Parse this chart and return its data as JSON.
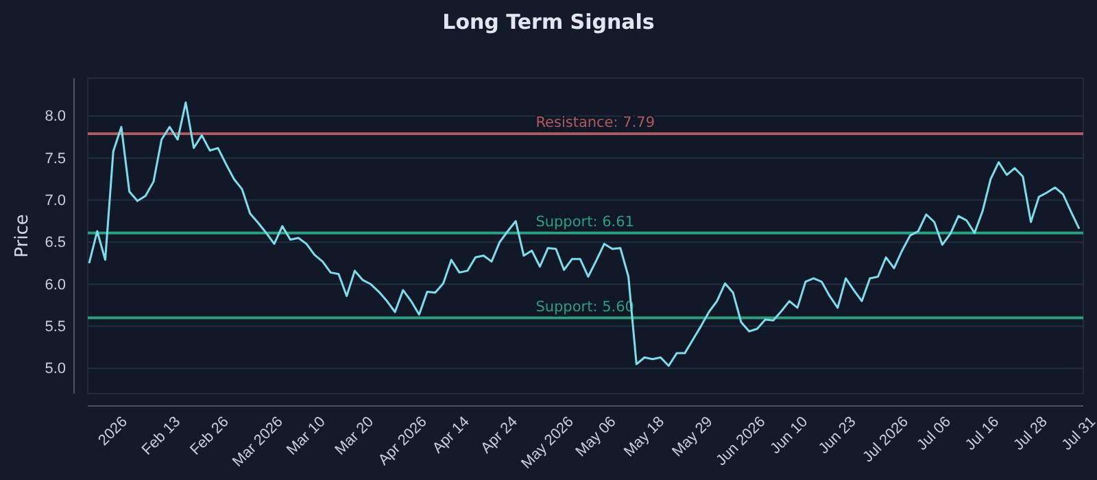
{
  "chart_data": {
    "type": "line",
    "title": "Long Term Signals",
    "ylabel": "Price",
    "categories": [
      null,
      null,
      null,
      "2026",
      null,
      null,
      null,
      null,
      null,
      "Feb 13",
      null,
      null,
      null,
      null,
      null,
      "Feb 26",
      null,
      null,
      null,
      null,
      null,
      "Mar 2026",
      null,
      null,
      null,
      null,
      null,
      "Mar 10",
      null,
      null,
      null,
      null,
      null,
      "Mar 20",
      null,
      null,
      null,
      null,
      null,
      "Apr 2026",
      null,
      null,
      null,
      null,
      null,
      "Apr 14",
      null,
      null,
      null,
      null,
      null,
      "Apr 24",
      null,
      null,
      null,
      null,
      null,
      "May 2026",
      null,
      null,
      null,
      null,
      null,
      "May 06",
      null,
      null,
      null,
      null,
      null,
      "May 18",
      null,
      null,
      null,
      null,
      null,
      "May 29",
      null,
      null,
      null,
      null,
      null,
      "Jun 2026",
      null,
      null,
      null,
      null,
      null,
      "Jun 10",
      null,
      null,
      null,
      null,
      null,
      "Jun 23",
      null,
      null,
      null,
      null,
      null,
      "Jul 2026",
      null,
      null,
      null,
      null,
      null,
      "Jul 06",
      null,
      null,
      null,
      null,
      null,
      "Jul 16",
      null,
      null,
      null,
      null,
      null,
      "Jul 28",
      null,
      null,
      null,
      null,
      null,
      "Jul 31"
    ],
    "series": [
      {
        "color": "#7fdcec",
        "values": [
          6.25,
          6.63,
          6.29,
          7.58,
          7.87,
          7.1,
          6.99,
          7.05,
          7.22,
          7.72,
          7.87,
          7.72,
          8.16,
          7.62,
          7.77,
          7.59,
          7.62,
          7.43,
          7.25,
          7.13,
          6.84,
          6.73,
          6.61,
          6.48,
          6.69,
          6.53,
          6.55,
          6.48,
          6.35,
          6.27,
          6.14,
          6.12,
          5.86,
          6.16,
          6.05,
          6.0,
          5.91,
          5.8,
          5.67,
          5.93,
          5.8,
          5.64,
          5.91,
          5.9,
          6.01,
          6.29,
          6.14,
          6.16,
          6.32,
          6.34,
          6.27,
          6.5,
          6.63,
          6.75,
          6.34,
          6.4,
          6.21,
          6.43,
          6.42,
          6.17,
          6.3,
          6.3,
          6.09,
          6.28,
          6.48,
          6.42,
          6.43,
          6.09,
          5.05,
          5.13,
          5.11,
          5.13,
          5.03,
          5.18,
          5.18,
          5.34,
          5.5,
          5.67,
          5.8,
          6.01,
          5.9,
          5.55,
          5.44,
          5.47,
          5.58,
          5.57,
          5.68,
          5.8,
          5.72,
          6.03,
          6.07,
          6.03,
          5.86,
          5.72,
          6.07,
          5.93,
          5.8,
          6.07,
          6.09,
          6.32,
          6.19,
          6.4,
          6.58,
          6.63,
          6.83,
          6.74,
          6.47,
          6.6,
          6.81,
          6.76,
          6.61,
          6.87,
          7.25,
          7.45,
          7.3,
          7.38,
          7.28,
          6.74,
          7.04,
          7.09,
          7.15,
          7.07,
          6.86,
          6.66
        ]
      }
    ],
    "ylim": [
      4.7,
      8.45
    ],
    "yticks": [
      {
        "value": 5,
        "label": "5.0"
      },
      5.5,
      {
        "value": 6,
        "label": "6.0"
      },
      6.5,
      {
        "value": 7,
        "label": "7.0"
      },
      7.5,
      {
        "value": 8,
        "label": "8.0"
      }
    ],
    "grid": "y",
    "marker": "none",
    "line_style": "solid",
    "ref_lines": [
      {
        "axis": "y",
        "value": 7.79,
        "label": "Resistance: 7.79",
        "color": "#b05a5f"
      },
      {
        "axis": "y",
        "value": 6.61,
        "label": "Support: 6.61",
        "color": "#2e9e80"
      },
      {
        "axis": "y",
        "value": 5.6,
        "label": "Support: 5.60",
        "color": "#2e9e80"
      }
    ]
  }
}
